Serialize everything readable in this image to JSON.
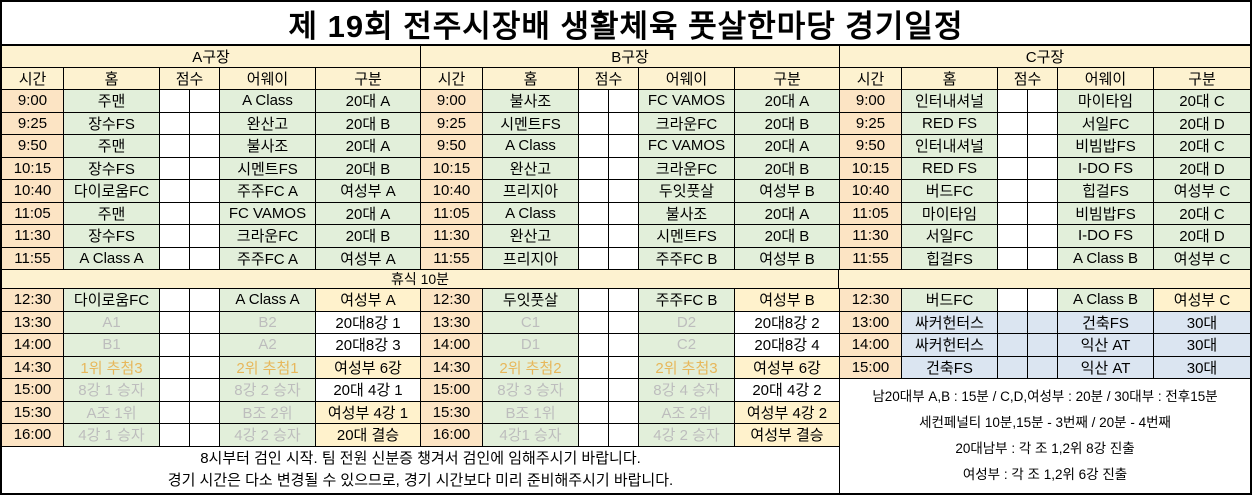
{
  "title": "제 19회 전주시장배 생활체육 풋살한마당 경기일정",
  "break_label": "휴식 10분",
  "columns": {
    "time": "시간",
    "home": "홈",
    "score": "점수",
    "away": "어웨이",
    "division": "구분"
  },
  "colors": {
    "header_bg": "#fdf2d0",
    "break_bg": "#fdf2d0",
    "time_bg": "#fce4c4",
    "team_green": "#e2efda",
    "highlight_yellow": "#fff2cc",
    "highlight_blue": "#dbe5f1",
    "muted_text": "#bdbdbd",
    "gold_text": "#e7b75b"
  },
  "sections": [
    {
      "name": "A구장",
      "morning": [
        {
          "time": "9:00",
          "home": "주맨",
          "away": "A Class",
          "division": "20대 A"
        },
        {
          "time": "9:25",
          "home": "장수FS",
          "away": "완산고",
          "division": "20대 B"
        },
        {
          "time": "9:50",
          "home": "주맨",
          "away": "불사조",
          "division": "20대 A"
        },
        {
          "time": "10:15",
          "home": "장수FS",
          "away": "시멘트FS",
          "division": "20대 B"
        },
        {
          "time": "10:40",
          "home": "다이로움FC",
          "away": "주주FC A",
          "division": "여성부 A"
        },
        {
          "time": "11:05",
          "home": "주맨",
          "away": "FC VAMOS",
          "division": "20대 A"
        },
        {
          "time": "11:30",
          "home": "장수FS",
          "away": "크라운FC",
          "division": "20대 B"
        },
        {
          "time": "11:55",
          "home": "A Class A",
          "away": "주주FC A",
          "division": "여성부 A"
        }
      ],
      "afternoon": [
        {
          "time": "12:30",
          "home": "다이로움FC",
          "away": "A Class A",
          "division": "여성부 A",
          "div_bg": "yellow"
        },
        {
          "time": "13:30",
          "home": "A1",
          "away": "B2",
          "division": "20대8강 1",
          "text": "gray",
          "div_bg": "white"
        },
        {
          "time": "14:00",
          "home": "B1",
          "away": "A2",
          "division": "20대8강 3",
          "text": "gray",
          "div_bg": "white"
        },
        {
          "time": "14:30",
          "home": "1위 추첨3",
          "away": "2위 추첨1",
          "division": "여성부 6강",
          "text": "gold",
          "div_bg": "yellow"
        },
        {
          "time": "15:00",
          "home": "8강 1 승자",
          "away": "8강 2 승자",
          "division": "20대 4강 1",
          "text": "gray",
          "div_bg": "white"
        },
        {
          "time": "15:30",
          "home": "A조 1위",
          "away": "B조 2위",
          "division": "여성부 4강 1",
          "text": "gray",
          "div_bg": "yellow"
        },
        {
          "time": "16:00",
          "home": "4강 1 승자",
          "away": "4강 2 승자",
          "division": "20대 결승",
          "text": "gray",
          "div_bg": "yellow"
        }
      ]
    },
    {
      "name": "B구장",
      "morning": [
        {
          "time": "9:00",
          "home": "불사조",
          "away": "FC VAMOS",
          "division": "20대 A"
        },
        {
          "time": "9:25",
          "home": "시멘트FS",
          "away": "크라운FC",
          "division": "20대 B"
        },
        {
          "time": "9:50",
          "home": "A Class",
          "away": "FC VAMOS",
          "division": "20대 A"
        },
        {
          "time": "10:15",
          "home": "완산고",
          "away": "크라운FC",
          "division": "20대 B"
        },
        {
          "time": "10:40",
          "home": "프리지아",
          "away": "두잇풋살",
          "division": "여성부 B"
        },
        {
          "time": "11:05",
          "home": "A Class",
          "away": "불사조",
          "division": "20대 A"
        },
        {
          "time": "11:30",
          "home": "완산고",
          "away": "시멘트FS",
          "division": "20대 B"
        },
        {
          "time": "11:55",
          "home": "프리지아",
          "away": "주주FC B",
          "division": "여성부 B"
        }
      ],
      "afternoon": [
        {
          "time": "12:30",
          "home": "두잇풋살",
          "away": "주주FC B",
          "division": "여성부 B",
          "div_bg": "yellow"
        },
        {
          "time": "13:30",
          "home": "C1",
          "away": "D2",
          "division": "20대8강 2",
          "text": "gray",
          "div_bg": "white"
        },
        {
          "time": "14:00",
          "home": "D1",
          "away": "C2",
          "division": "20대8강 4",
          "text": "gray",
          "div_bg": "white"
        },
        {
          "time": "14:30",
          "home": "2위 추첨2",
          "away": "2위 추첨3",
          "division": "여성부 6강",
          "text": "gold",
          "div_bg": "yellow"
        },
        {
          "time": "15:00",
          "home": "8강 3 승자",
          "away": "8강 4 승자",
          "division": "20대 4강 2",
          "text": "gray",
          "div_bg": "white"
        },
        {
          "time": "15:30",
          "home": "B조 1위",
          "away": "A조 2위",
          "division": "여성부 4강 2",
          "text": "gray",
          "div_bg": "yellow"
        },
        {
          "time": "16:00",
          "home": "4강1 승자",
          "away": "4강 2 승자",
          "division": "여성부 결승",
          "text": "gray",
          "div_bg": "yellow"
        }
      ]
    },
    {
      "name": "C구장",
      "morning": [
        {
          "time": "9:00",
          "home": "인터내셔널",
          "away": "마이타임",
          "division": "20대 C"
        },
        {
          "time": "9:25",
          "home": "RED FS",
          "away": "서일FC",
          "division": "20대 D"
        },
        {
          "time": "9:50",
          "home": "인터내셔널",
          "away": "비빔밥FS",
          "division": "20대 C"
        },
        {
          "time": "10:15",
          "home": "RED FS",
          "away": "I-DO FS",
          "division": "20대 D"
        },
        {
          "time": "10:40",
          "home": "버드FC",
          "away": "힙걸FS",
          "division": "여성부 C"
        },
        {
          "time": "11:05",
          "home": "마이타임",
          "away": "비빔밥FS",
          "division": "20대 C"
        },
        {
          "time": "11:30",
          "home": "서일FC",
          "away": "I-DO FS",
          "division": "20대 D"
        },
        {
          "time": "11:55",
          "home": "힙걸FS",
          "away": "A Class B",
          "division": "여성부 C"
        }
      ],
      "afternoon": [
        {
          "time": "12:30",
          "home": "버드FC",
          "away": "A Class B",
          "division": "여성부 C",
          "div_bg": "yellow"
        },
        {
          "time": "13:00",
          "home": "싸커헌터스",
          "away": "건축FS",
          "division": "30대",
          "bg": "blue",
          "div_bg": "blue"
        },
        {
          "time": "14:00",
          "home": "싸커헌터스",
          "away": "익산 AT",
          "division": "30대",
          "bg": "blue",
          "div_bg": "blue"
        },
        {
          "time": "15:00",
          "home": "건축FS",
          "away": "익산 AT",
          "division": "30대",
          "bg": "blue",
          "div_bg": "blue"
        }
      ]
    }
  ],
  "c_notes": [
    "남20대부 A,B : 15분 / C,D,여성부 : 20분 / 30대부 : 전후15분",
    "세컨페널티 10분,15분 - 3번째 / 20분 - 4번째",
    "20대남부 : 각 조 1,2위 8강 진출",
    "여성부 : 각 조 1,2위 6강 진출"
  ],
  "footer_notes": [
    "8시부터 검인 시작. 팀 전원 신분증 챙겨서 검인에 임해주시기 바랍니다.",
    "경기 시간은 다소 변경될 수 있으므로, 경기 시간보다 미리 준비해주시기 바랍니다."
  ]
}
